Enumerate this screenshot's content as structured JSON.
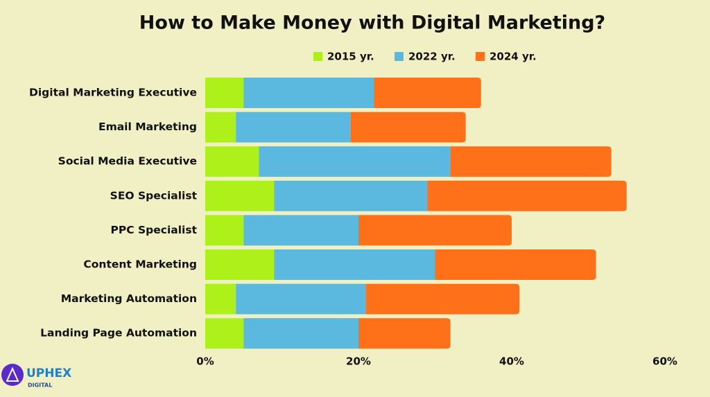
{
  "chart_data": {
    "type": "stacked-barh",
    "title": "How to Make Money with Digital Marketing?",
    "categories": [
      "Digital Marketing Executive",
      "Email Marketing",
      "Social Media Executive",
      "SEO Specialist",
      "PPC Specialist",
      "Content Marketing",
      "Marketing Automation",
      "Landing Page Automation"
    ],
    "series": [
      {
        "name": "2015 yr.",
        "color": "#aef01a",
        "values": [
          5,
          4,
          7,
          9,
          5,
          9,
          4,
          5
        ]
      },
      {
        "name": "2022 yr.",
        "color": "#5bb8de",
        "values": [
          17,
          15,
          25,
          20,
          15,
          21,
          17,
          15
        ]
      },
      {
        "name": "2024 yr.",
        "color": "#ff7119",
        "values": [
          14,
          15,
          21,
          26,
          20,
          21,
          20,
          12
        ]
      }
    ],
    "xlim": [
      0,
      60
    ],
    "xticks": [
      {
        "value": 0,
        "label": "0%"
      },
      {
        "value": 20,
        "label": "20%"
      },
      {
        "value": 40,
        "label": "40%"
      },
      {
        "value": 60,
        "label": "60%"
      }
    ],
    "legend": "top"
  },
  "logo": {
    "name": "UPHEX",
    "sub": "DIGITAL"
  }
}
